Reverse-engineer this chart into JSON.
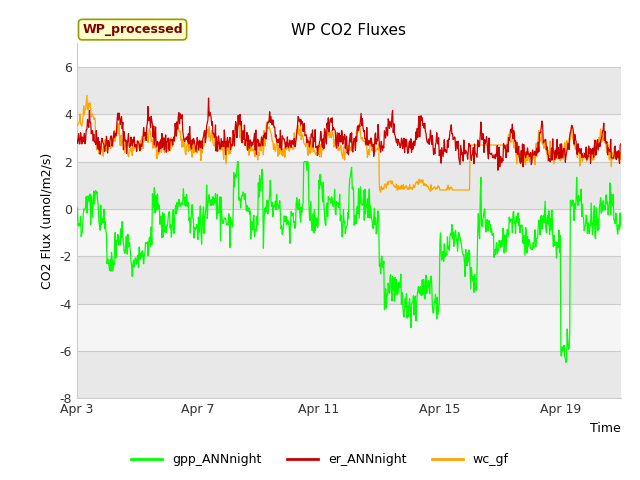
{
  "title": "WP CO2 Fluxes",
  "xlabel": "Time",
  "ylabel": "CO2 Flux (umol/m2/s)",
  "ylim": [
    -8,
    7
  ],
  "yticks": [
    -8,
    -6,
    -4,
    -2,
    0,
    2,
    4,
    6
  ],
  "n_days": 18,
  "n_per_day": 48,
  "colors": {
    "gpp": "#00FF00",
    "er": "#CC0000",
    "wc": "#FFA500"
  },
  "legend_label": "WP_processed",
  "legend_fg": "#800000",
  "legend_bg": "#FFFFCC",
  "background_fig": "#FFFFFF",
  "background_ax": "#FFFFFF",
  "band_color_dark": "#E8E8E8",
  "band_color_light": "#F5F5F5",
  "xtick_labels": [
    "Apr 3",
    "Apr 7",
    "Apr 11",
    "Apr 15",
    "Apr 19"
  ],
  "xtick_days": [
    0,
    4,
    8,
    12,
    16
  ]
}
